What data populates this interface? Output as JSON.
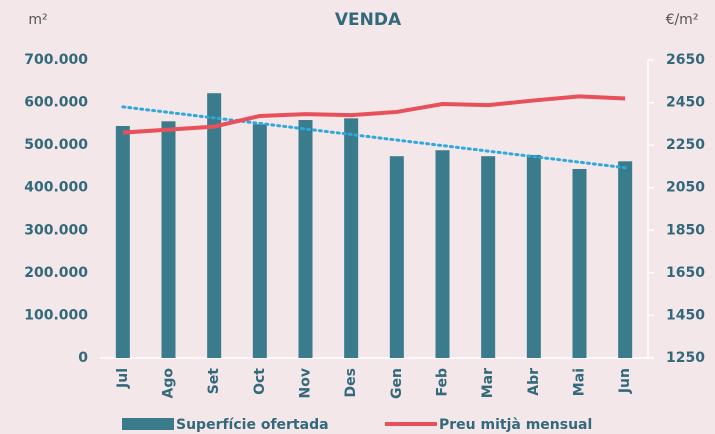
{
  "chart_data": {
    "type": "bar-line",
    "title": "VENDA",
    "ylabel": "m²",
    "y2label": "€/m²",
    "categories": [
      "Jul",
      "Ago",
      "Set",
      "Oct",
      "Nov",
      "Des",
      "Gen",
      "Feb",
      "Mar",
      "Abr",
      "Mai",
      "Jun"
    ],
    "series": [
      {
        "name": "Superfície ofertada",
        "type": "bar",
        "color": "#3a7b8c",
        "values": [
          545000,
          556000,
          622000,
          549000,
          559000,
          563000,
          474000,
          488000,
          474000,
          477000,
          444000,
          462000
        ]
      },
      {
        "name": "Preu mitjà mensual",
        "type": "line",
        "axis": "y2",
        "color": "#e8505b",
        "values": [
          2309,
          2323,
          2337,
          2387,
          2396,
          2391,
          2406,
          2443,
          2438,
          2460,
          2479,
          2469
        ]
      }
    ],
    "trendline": {
      "color": "#2fa8dc",
      "values": [
        590000,
        577000,
        564000,
        551000,
        538000,
        525000,
        512000,
        499000,
        486000,
        473000,
        460000,
        447000
      ]
    },
    "ylim": [
      0,
      700000
    ],
    "yticks": [
      {
        "value": 0,
        "label": "0"
      },
      {
        "value": 100000,
        "label": "100.000"
      },
      {
        "value": 200000,
        "label": "200.000"
      },
      {
        "value": 300000,
        "label": "300.000"
      },
      {
        "value": 400000,
        "label": "400.000"
      },
      {
        "value": 500000,
        "label": "500.000"
      },
      {
        "value": 600000,
        "label": "600.000"
      },
      {
        "value": 700000,
        "label": "700.000"
      }
    ],
    "y2lim": [
      1250,
      2650
    ],
    "y2ticks": [
      1250,
      1450,
      1650,
      1850,
      2050,
      2250,
      2450,
      2650
    ],
    "legend": "bottom"
  }
}
